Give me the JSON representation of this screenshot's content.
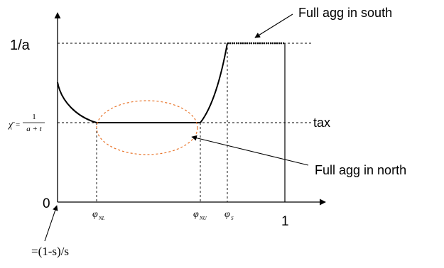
{
  "annotations": {
    "full_agg_south": "Full agg in south",
    "full_agg_north": "Full agg in north",
    "tax": "tax"
  },
  "y_axis": {
    "top_tick": "1/a",
    "origin": "0",
    "chi_symbol": "χ̄",
    "equals": "=",
    "fraction_numerator": "1",
    "fraction_denominator": "a + t"
  },
  "x_axis": {
    "phi_nl_symbol": "φ",
    "phi_nl_sub": "NL",
    "phi_nu_symbol": "φ",
    "phi_nu_sub": "NU",
    "phi_s_symbol": "φ",
    "phi_s_sub": "S",
    "one": "1",
    "origin_note": "=(1-s)/s"
  },
  "colors": {
    "line": "#000000",
    "ellipse": "#e8742a",
    "guide": "#000000",
    "background": "#ffffff"
  }
}
